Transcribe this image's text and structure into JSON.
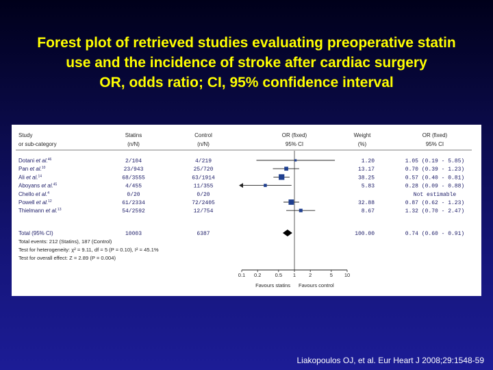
{
  "title": {
    "lines": [
      "Forest plot of retrieved studies evaluating preoperative statin",
      "use and the incidence of stroke after cardiac surgery",
      "OR, odds ratio; CI, 95% confidence interval"
    ]
  },
  "source": "Liakopoulos OJ, et al. Eur Heart J 2008;29:1548-59",
  "colors": {
    "background_top": "#00001a",
    "background_bottom": "#1c1c96",
    "title": "#ffff00",
    "panel": "#ffffff",
    "row_text": "#1a1a66",
    "marker": "#1f3f8f"
  },
  "chart_data": {
    "type": "forest",
    "scale": "log",
    "xlim": [
      0.1,
      10
    ],
    "headers": {
      "study": [
        "Study",
        "or sub-category"
      ],
      "statins": [
        "Statins",
        "(n/N)"
      ],
      "control": [
        "Control",
        "(n/N)"
      ],
      "or_plot": [
        "OR (fixed)",
        "95% CI"
      ],
      "weight": [
        "Weight",
        "(%)"
      ],
      "or_text": [
        "OR (fixed)",
        "95% CI"
      ]
    },
    "studies": [
      {
        "name": "Dotani et al.",
        "ref": "46",
        "statins": "2/104",
        "control": "4/219",
        "weight": 1.2,
        "weight_text": "1.20",
        "or": 1.05,
        "ci": [
          0.19,
          5.85
        ],
        "or_text": "1.05 (0.19 - 5.85)"
      },
      {
        "name": "Pan et al.",
        "ref": "10",
        "statins": "23/943",
        "control": "25/720",
        "weight": 13.17,
        "weight_text": "13.17",
        "or": 0.7,
        "ci": [
          0.39,
          1.23
        ],
        "or_text": "0.70 (0.39 - 1.23)"
      },
      {
        "name": "Ali et al.",
        "ref": "14",
        "statins": "68/3555",
        "control": "63/1914",
        "weight": 38.25,
        "weight_text": "38.25",
        "or": 0.57,
        "ci": [
          0.4,
          0.81
        ],
        "or_text": "0.57 (0.40 - 0.81)"
      },
      {
        "name": "Aboyans et al.",
        "ref": "45",
        "statins": "4/455",
        "control": "11/355",
        "weight": 5.83,
        "weight_text": "5.83",
        "or": 0.28,
        "ci": [
          0.09,
          0.88
        ],
        "or_text": "0.28 (0.09 - 0.88)"
      },
      {
        "name": "Chello et al.",
        "ref": "4",
        "statins": "0/20",
        "control": "0/20",
        "weight": null,
        "weight_text": "",
        "or": null,
        "ci": null,
        "or_text": "Not estimable"
      },
      {
        "name": "Powell et al.",
        "ref": "12",
        "statins": "61/2334",
        "control": "72/2405",
        "weight": 32.88,
        "weight_text": "32.88",
        "or": 0.87,
        "ci": [
          0.62,
          1.23
        ],
        "or_text": "0.87 (0.62 - 1.23)"
      },
      {
        "name": "Thielmann et al.",
        "ref": "13",
        "statins": "54/2592",
        "control": "12/754",
        "weight": 8.67,
        "weight_text": "8.67",
        "or": 1.32,
        "ci": [
          0.7,
          2.47
        ],
        "or_text": "1.32 (0.70 - 2.47)"
      }
    ],
    "total": {
      "label": "Total (95% CI)",
      "statins": "10003",
      "control": "6387",
      "weight_text": "100.00",
      "or": 0.74,
      "ci": [
        0.6,
        0.91
      ],
      "or_text": "0.74 (0.60 - 0.91)"
    },
    "footnotes": [
      "Total events: 212 (Statins), 187 (Control)",
      "Test for heterogeneity: χ² = 9.11, df = 5 (P = 0.10), I² = 45.1%",
      "Test for overall effect: Z = 2.89 (P = 0.004)"
    ],
    "ticks": [
      0.1,
      0.2,
      0.5,
      1,
      2,
      5,
      10
    ],
    "tick_labels": [
      "0.1",
      "0.2",
      "0.5",
      "1",
      "2",
      "5",
      "10"
    ],
    "xlabel_left": "Favours statins",
    "xlabel_right": "Favours control"
  }
}
